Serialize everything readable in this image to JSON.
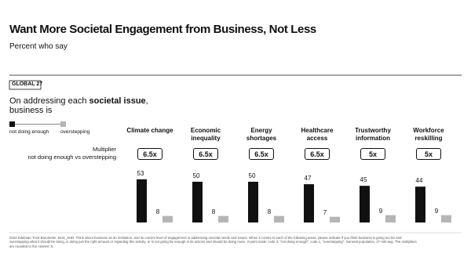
{
  "chart_data": {
    "type": "bar",
    "title": "Want More Societal Engagement from Business, Not Less",
    "subtitle": "Percent who say",
    "tag": "GLOBAL 27",
    "question": [
      "On addressing each ",
      "societal issue",
      ", business is"
    ],
    "multiplier_label": [
      "Multiplier",
      "not doing enough vs overstepping"
    ],
    "categories": [
      "Climate change",
      "Economic inequality",
      "Energy shortages",
      "Healthcare access",
      "Trustworthy information",
      "Workforce reskilling"
    ],
    "multipliers": [
      "6.5x",
      "6.5x",
      "6.5x",
      "6.5x",
      "5x",
      "5x"
    ],
    "series": [
      {
        "name": "not doing enough",
        "color": "#111111",
        "values": [
          53,
          50,
          50,
          47,
          45,
          44
        ]
      },
      {
        "name": "overstepping",
        "color": "#b5b5b5",
        "values": [
          8,
          8,
          8,
          7,
          9,
          9
        ]
      }
    ],
    "footnote": "2023 Edelman Trust Barometer. BUS_SHD. Think about business as an institution, and its current level of engagement in addressing societal needs and issues. When it comes to each of the following areas, please indicate if you think business is going too far and overstepping what it should be doing, is doing just the right amount or regarding this activity, or is not going far enough in its actions and should be doing more. 3-point scale; code 3, \"not doing enough\"; code 1, \"overstepping\". General population, 27-mkt avg. The multipliers are rounded to the nearest .5."
  }
}
